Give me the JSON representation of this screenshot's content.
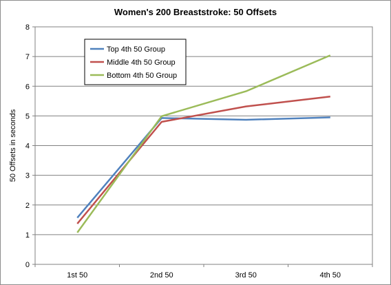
{
  "chart_data": {
    "type": "line",
    "title": "Women's 200 Breaststroke: 50 Offsets",
    "xlabel": "",
    "ylabel": "50 Offsets in seconds",
    "categories": [
      "1st 50",
      "2nd 50",
      "3rd 50",
      "4th 50"
    ],
    "ylim": [
      0,
      8
    ],
    "yticks": [
      "0",
      "1",
      "2",
      "3",
      "4",
      "5",
      "6",
      "7",
      "8"
    ],
    "grid": "horizontal",
    "legend_position": "top-left",
    "series": [
      {
        "name": "Top 4th 50  Group",
        "color": "#4f81bd",
        "values": [
          1.57,
          4.93,
          4.87,
          4.95
        ]
      },
      {
        "name": "Middle 4th 50 Group",
        "color": "#c0504d",
        "values": [
          1.37,
          4.8,
          5.32,
          5.65
        ]
      },
      {
        "name": "Bottom 4th 50 Group",
        "color": "#9bbb59",
        "values": [
          1.07,
          4.99,
          5.83,
          7.04
        ]
      }
    ]
  }
}
